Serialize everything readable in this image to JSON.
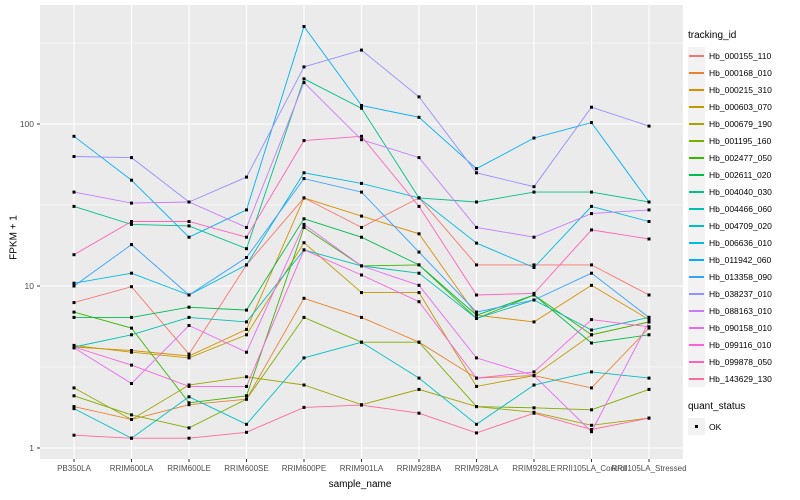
{
  "chart_data": {
    "type": "line",
    "title": "",
    "xlabel": "sample_name",
    "ylabel": "FPKM + 1",
    "y_scale": "log10",
    "y_ticks": [
      1,
      10,
      100
    ],
    "ylim": [
      1,
      450
    ],
    "grid": "on",
    "panel_bg": "#EBEBEB",
    "grid_color": "#FFFFFF",
    "point_shape": "square",
    "point_color": "#000000",
    "legend_title": "tracking_id",
    "legend_position": "right",
    "legend2_title": "quant_status",
    "legend2_items": [
      "OK"
    ],
    "categories": [
      "PB350LA",
      "RRIM600LA",
      "RRIM600LE",
      "RRIM600SE",
      "RRIM600PE",
      "RRIM901LA",
      "RRIM928BA",
      "RRIM928LA",
      "RRIM928LE",
      "RRII105LA_Control",
      "RRII105LA_Stressed"
    ],
    "series": [
      {
        "name": "Hb_000155_110",
        "color": "#F8766D",
        "values": [
          7.9,
          9.9,
          3.8,
          13.5,
          35,
          23,
          35,
          13.5,
          13.5,
          13.5,
          8.8
        ]
      },
      {
        "name": "Hb_000168_010",
        "color": "#EA8331",
        "values": [
          1.8,
          1.5,
          1.85,
          2.0,
          8.4,
          6.4,
          4.5,
          2.7,
          2.8,
          2.35,
          5.5
        ]
      },
      {
        "name": "Hb_000215_310",
        "color": "#D89000",
        "values": [
          4.2,
          4.0,
          3.7,
          5.4,
          35,
          27,
          21,
          6.6,
          6.0,
          10.1,
          6.2
        ]
      },
      {
        "name": "Hb_000603_070",
        "color": "#C09B00",
        "values": [
          4.3,
          3.9,
          3.6,
          5.0,
          18.5,
          9.1,
          9.1,
          2.4,
          2.8,
          5.0,
          6.0
        ]
      },
      {
        "name": "Hb_000679_190",
        "color": "#A3A500",
        "values": [
          2.35,
          1.5,
          2.45,
          2.75,
          2.45,
          1.85,
          2.3,
          1.8,
          1.66,
          1.38,
          1.53
        ]
      },
      {
        "name": "Hb_001195_160",
        "color": "#7CAE00",
        "values": [
          2.1,
          1.6,
          1.33,
          2.0,
          6.4,
          4.5,
          4.5,
          1.8,
          1.77,
          1.72,
          2.3
        ]
      },
      {
        "name": "Hb_002477_050",
        "color": "#39B600",
        "values": [
          6.9,
          5.5,
          1.9,
          2.1,
          23,
          13.3,
          13.5,
          6.3,
          8.8,
          5.0,
          6.0
        ]
      },
      {
        "name": "Hb_002611_020",
        "color": "#00BB4E",
        "values": [
          6.4,
          6.4,
          7.4,
          7.1,
          26,
          20,
          13.5,
          6.6,
          8.8,
          4.45,
          5.0
        ]
      },
      {
        "name": "Hb_004040_030",
        "color": "#00C08B",
        "values": [
          31,
          24,
          23.5,
          17,
          190,
          125,
          35,
          33,
          38,
          38,
          33
        ]
      },
      {
        "name": "Hb_004466_060",
        "color": "#00C0AF",
        "values": [
          4.2,
          5.0,
          6.4,
          6.0,
          16.7,
          13.3,
          12,
          6.3,
          8.2,
          5.35,
          6.4
        ]
      },
      {
        "name": "Hb_004709_020",
        "color": "#00BFC4",
        "values": [
          1.75,
          1.15,
          2.07,
          1.4,
          3.6,
          4.5,
          2.7,
          1.4,
          2.45,
          2.95,
          2.7
        ]
      },
      {
        "name": "Hb_006636_010",
        "color": "#00BAE0",
        "values": [
          10.4,
          12,
          8.8,
          13.5,
          50,
          43,
          35,
          18.4,
          13,
          31,
          25
        ]
      },
      {
        "name": "Hb_011942_060",
        "color": "#00B0F6",
        "values": [
          84,
          45,
          20,
          29.5,
          400,
          130,
          110,
          53,
          82,
          102,
          33
        ]
      },
      {
        "name": "Hb_013358_090",
        "color": "#35A2FF",
        "values": [
          10,
          18,
          8.8,
          15,
          46,
          38,
          16.2,
          6.9,
          8.2,
          12,
          6.4
        ]
      },
      {
        "name": "Hb_038237_010",
        "color": "#9590FF",
        "values": [
          63,
          62,
          33,
          47,
          225,
          286,
          147,
          50,
          41,
          127,
          97
        ]
      },
      {
        "name": "Hb_088163_010",
        "color": "#C77CFF",
        "values": [
          38,
          32.5,
          33,
          23,
          180,
          80,
          62,
          23,
          20,
          28,
          29.5
        ]
      },
      {
        "name": "Hb_090158_010",
        "color": "#E76BF3",
        "values": [
          4.15,
          2.5,
          5.7,
          3.9,
          24,
          13.3,
          10.1,
          3.6,
          2.8,
          1.26,
          6.0
        ]
      },
      {
        "name": "Hb_099116_010",
        "color": "#FA62DB",
        "values": [
          4.2,
          3.25,
          2.4,
          2.4,
          16.7,
          11.7,
          8.0,
          2.7,
          2.95,
          6.2,
          5.6
        ]
      },
      {
        "name": "Hb_099878_050",
        "color": "#FF62BC",
        "values": [
          15.6,
          25,
          25,
          20,
          79,
          84,
          31,
          8.8,
          9.0,
          22.2,
          19.5
        ]
      },
      {
        "name": "Hb_143629_130",
        "color": "#FF6A98",
        "values": [
          1.2,
          1.15,
          1.15,
          1.25,
          1.78,
          1.84,
          1.64,
          1.24,
          1.64,
          1.3,
          1.53
        ]
      }
    ]
  }
}
